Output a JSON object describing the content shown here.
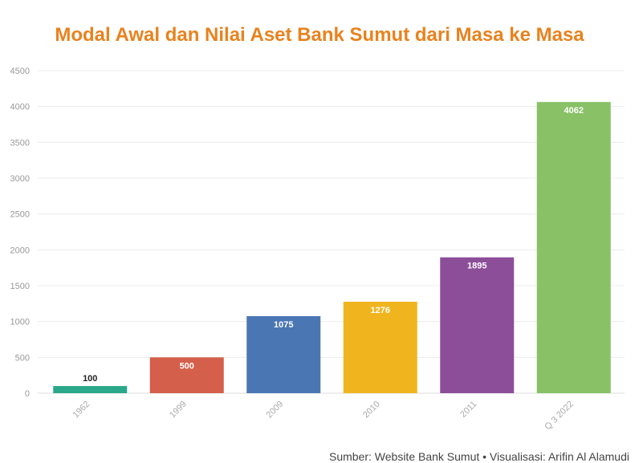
{
  "chart_data": {
    "type": "bar",
    "title": "Modal Awal dan Nilai Aset Bank Sumut dari Masa ke Masa",
    "xlabel": "",
    "ylabel": "",
    "categories": [
      "1962",
      "1999",
      "2009",
      "2010",
      "2011",
      "Q 3 2022"
    ],
    "values": [
      100,
      500,
      1075,
      1276,
      1895,
      4062
    ],
    "data_labels": [
      "100",
      "500",
      "1075",
      "1276",
      "1895",
      "4062"
    ],
    "colors": [
      "#2aa889",
      "#d45f4a",
      "#4a76b4",
      "#f0b51e",
      "#8c4e99",
      "#88c166"
    ],
    "ylim": [
      0,
      4500
    ],
    "yticks": [
      "0",
      "500",
      "1000",
      "1500",
      "2000",
      "2500",
      "3000",
      "3500",
      "4000",
      "4500"
    ],
    "grid": true,
    "legend": "none"
  },
  "footer": {
    "source": "Sumber: Website Bank Sumut • Visualisasi: Arifin Al Alamudi"
  }
}
